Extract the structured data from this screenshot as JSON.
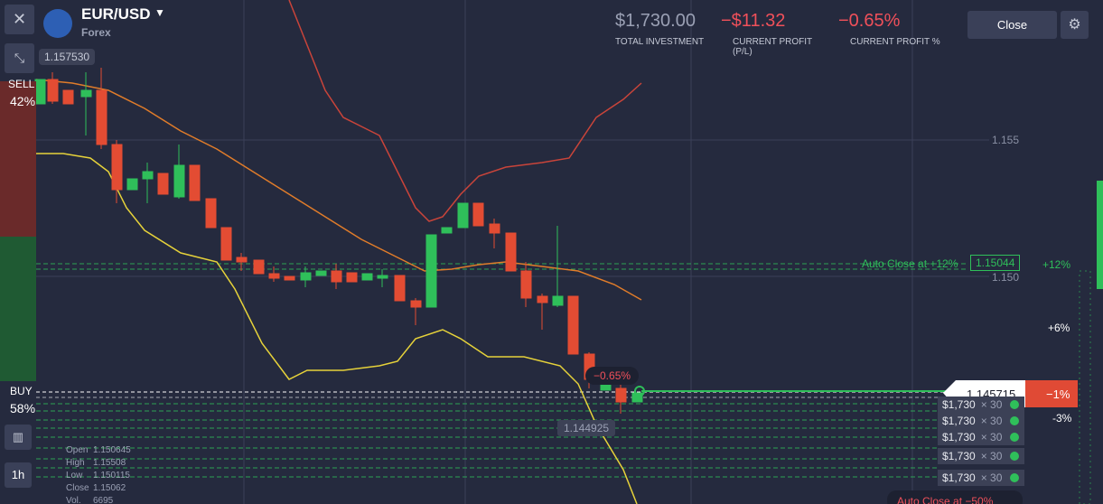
{
  "header": {
    "pair": "EUR/USD",
    "market": "Forex",
    "total_investment": "$1,730.00",
    "total_investment_label": "TOTAL INVESTMENT",
    "current_profit": "−$11.32",
    "current_profit_label": "CURRENT PROFIT (P/L)",
    "current_profit_pct": "−0.65%",
    "current_profit_pct_label": "CURRENT PROFIT %",
    "close_button": "Close"
  },
  "left_panel": {
    "price_top": "1.157530",
    "sell_label": "SELL",
    "sell_pct": "42%",
    "buy_label": "BUY",
    "buy_pct": "58%",
    "timeframe": "1h"
  },
  "ohlc": [
    {
      "label": "Open",
      "value": "1.150645"
    },
    {
      "label": "High",
      "value": "1.15508"
    },
    {
      "label": "Low",
      "value": "1.150115"
    },
    {
      "label": "Close",
      "value": "1.15062"
    },
    {
      "label": "Vol.",
      "value": "6695"
    }
  ],
  "price_axis": [
    "1.155",
    "1.150"
  ],
  "auto_close_top": {
    "label": "Auto Close at +12%",
    "price": "1.15044"
  },
  "right_scale": [
    "+12%",
    "+6%",
    "-3%"
  ],
  "current_price": {
    "price": "1.145715",
    "pct": "−1%"
  },
  "bubble": "−0.65%",
  "bottom_price": "1.144925",
  "positions": [
    {
      "amount": "$1,730",
      "mult": "× 30"
    },
    {
      "amount": "$1,730",
      "mult": "× 30"
    },
    {
      "amount": "$1,730",
      "mult": "× 30"
    },
    {
      "amount": "$1,730",
      "mult": "× 30"
    },
    {
      "amount": "$1,730",
      "mult": "× 30"
    }
  ],
  "auto_close_bottom": "Auto Close at −50%"
}
